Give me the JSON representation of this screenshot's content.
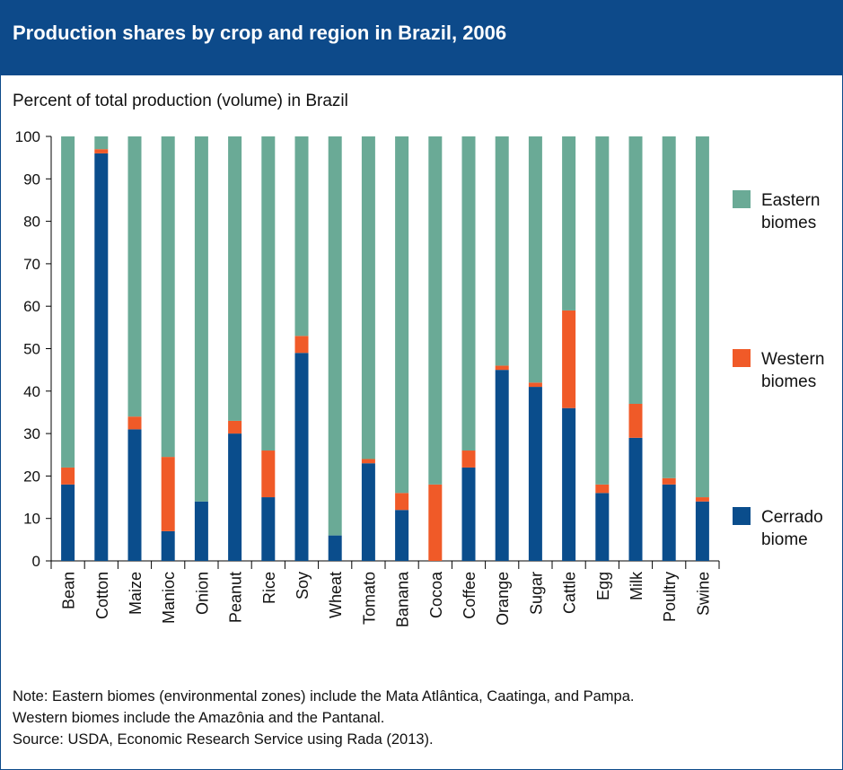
{
  "header": {
    "title": "Production shares by crop and region in Brazil, 2006"
  },
  "colors": {
    "header_bg": "#0d4a8a",
    "cerrado": "#0a4d8c",
    "western": "#f05a28",
    "eastern": "#6aaa96"
  },
  "chart_data": {
    "type": "bar",
    "stacked": true,
    "ylabel": "Percent of total production (volume) in Brazil",
    "ylim": [
      0,
      100
    ],
    "yticks": [
      0,
      10,
      20,
      30,
      40,
      50,
      60,
      70,
      80,
      90,
      100
    ],
    "grid": false,
    "legend_position": "right",
    "categories": [
      "Bean",
      "Cotton",
      "Maize",
      "Manioc",
      "Onion",
      "Peanut",
      "Rice",
      "Soy",
      "Wheat",
      "Tomato",
      "Banana",
      "Cocoa",
      "Coffee",
      "Orange",
      "Sugar",
      "Cattle",
      "Egg",
      "Milk",
      "Poultry",
      "Swine"
    ],
    "series": [
      {
        "name": "Cerrado biome",
        "legend_lines": [
          "Cerrado",
          "biome"
        ],
        "color": "#0a4d8c",
        "values": [
          18,
          96,
          31,
          7,
          14,
          30,
          15,
          49,
          6,
          23,
          12,
          0,
          22,
          45,
          41,
          36,
          16,
          29,
          18,
          14
        ]
      },
      {
        "name": "Western biomes",
        "legend_lines": [
          "Western",
          "biomes"
        ],
        "color": "#f05a28",
        "values": [
          4,
          1,
          3,
          17.5,
          0,
          3,
          11,
          4,
          0,
          1,
          4,
          18,
          4,
          1,
          1,
          23,
          2,
          8,
          1.5,
          1
        ]
      },
      {
        "name": "Eastern biomes",
        "legend_lines": [
          "Eastern",
          "biomes"
        ],
        "color": "#6aaa96",
        "values": [
          78,
          3,
          66,
          75.5,
          86,
          67,
          74,
          47,
          94,
          76,
          84,
          82,
          74,
          54,
          58,
          41,
          82,
          63,
          80.5,
          85
        ]
      }
    ]
  },
  "notes": {
    "line1": "Note: Eastern biomes (environmental zones) include the Mata Atlântica, Caatinga, and Pampa.",
    "line2": "Western biomes include the Amazônia and the Pantanal.",
    "line3": "Source: USDA, Economic Research Service using Rada (2013)."
  }
}
